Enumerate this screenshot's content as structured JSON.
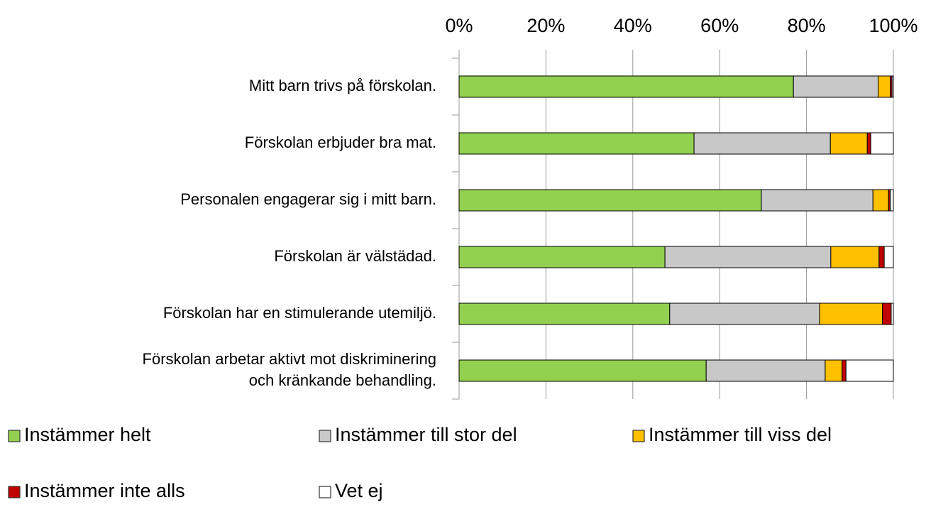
{
  "chart_data": {
    "type": "stacked_bar_horizontal",
    "categories": [
      "Mitt barn trivs på förskolan.",
      "Förskolan erbjuder bra mat.",
      "Personalen engagerar sig i mitt barn.",
      "Förskolan är välstädad.",
      "Förskolan har en stimulerande utemiljö.",
      "Förskolan arbetar aktivt mot diskriminering\noch kränkande behandling."
    ],
    "series": [
      {
        "name": "Instämmer helt",
        "color": "#92d050",
        "values": [
          77,
          54.1,
          69.6,
          47.4,
          48.5,
          56.9
        ]
      },
      {
        "name": "Instämmer till stor del",
        "color": "#c8c8c8",
        "values": [
          19.5,
          31.4,
          25.7,
          38.2,
          34.5,
          27.4
        ]
      },
      {
        "name": "Instämmer till viss del",
        "color": "#ffc000",
        "values": [
          2.8,
          8.5,
          3.6,
          11.1,
          14.5,
          3.9
        ]
      },
      {
        "name": "Instämmer inte alls",
        "color": "#c00000",
        "values": [
          0.4,
          0.8,
          0.4,
          1.2,
          2.0,
          0.9
        ]
      },
      {
        "name": "Vet ej",
        "color": "#ffffff",
        "values": [
          0.3,
          5.2,
          0.7,
          2.1,
          0.5,
          10.9
        ]
      }
    ],
    "xlim": [
      0,
      100
    ],
    "xticks": [
      {
        "value": 0,
        "label": "0%"
      },
      {
        "value": 20,
        "label": "20%"
      },
      {
        "value": 40,
        "label": "40%"
      },
      {
        "value": 60,
        "label": "60%"
      },
      {
        "value": 80,
        "label": "80%"
      },
      {
        "value": 100,
        "label": "100%"
      }
    ],
    "grid": true
  }
}
